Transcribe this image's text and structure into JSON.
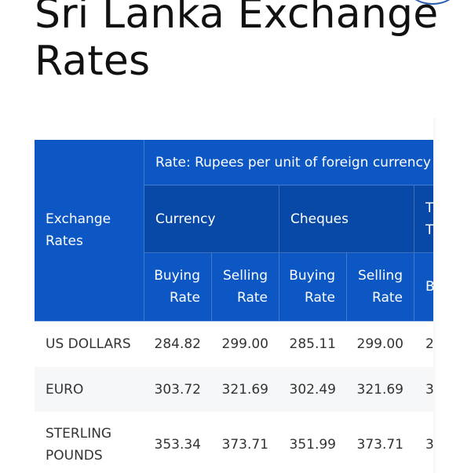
{
  "page": {
    "title": "Sri Lanka Exchange Rates"
  },
  "table": {
    "row_header": "Exchange Rates",
    "rate_caption": "Rate: Rupees per unit of foreign currency as",
    "groups": {
      "currency": "Currency",
      "cheques": "Cheques",
      "partial": "T T"
    },
    "sub": {
      "buying": "Buying Rate",
      "selling": "Selling Rate",
      "partial": "B"
    },
    "rows": [
      {
        "name": "US DOLLARS",
        "cur_buy": "284.82",
        "cur_sell": "299.00",
        "chq_buy": "285.11",
        "chq_sell": "299.00",
        "tt_buy": "2"
      },
      {
        "name": "EURO",
        "cur_buy": "303.72",
        "cur_sell": "321.69",
        "chq_buy": "302.49",
        "chq_sell": "321.69",
        "tt_buy": "3"
      },
      {
        "name": "STERLING POUNDS",
        "cur_buy": "353.34",
        "cur_sell": "373.71",
        "chq_buy": "351.99",
        "chq_sell": "373.71",
        "tt_buy": "3"
      }
    ]
  },
  "colors": {
    "header_blue": "#0c57c4",
    "header_dark_blue": "#0848a6",
    "row_alt": "#f6f7f8"
  }
}
